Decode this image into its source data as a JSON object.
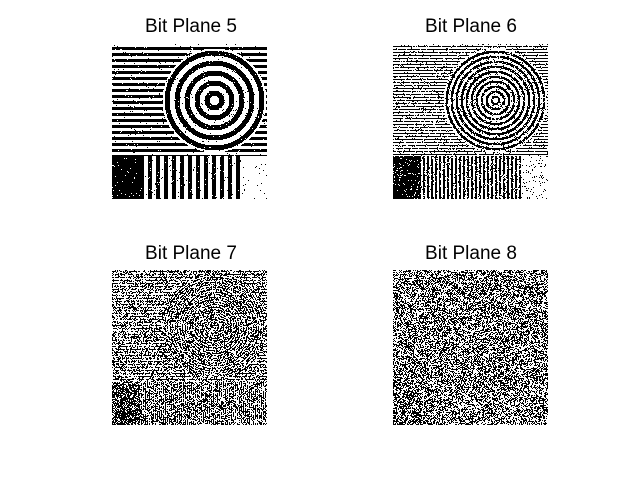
{
  "figure": {
    "panels": [
      {
        "id": "p5",
        "title": "Bit Plane 5",
        "bit": 5
      },
      {
        "id": "p6",
        "title": "Bit Plane 6",
        "bit": 6
      },
      {
        "id": "p7",
        "title": "Bit Plane 7",
        "bit": 7
      },
      {
        "id": "p8",
        "title": "Bit Plane 8",
        "bit": 8
      }
    ],
    "colors": {
      "on": "#000000",
      "off": "#ffffff"
    }
  }
}
